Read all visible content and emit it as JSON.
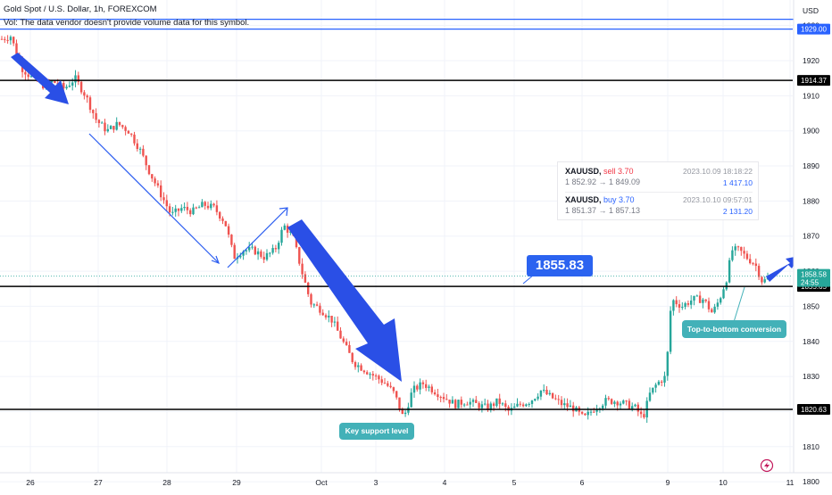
{
  "header": {
    "title": "Gold Spot / U.S. Dollar, 1h, FOREXCOM",
    "vol_note": "Vol: The data vendor doesn't provide volume data for this symbol.",
    "currency": "USD"
  },
  "trades": [
    {
      "symbol": "XAUUSD,",
      "side": "sell 3.70",
      "side_color": "#f23645",
      "datetime": "2023.10.09 18:18:22",
      "prices": "1 852.92 → 1 849.09",
      "volume": "1 417.10"
    },
    {
      "symbol": "XAUUSD,",
      "side": "buy 3.70",
      "side_color": "#2962ff",
      "datetime": "2023.10.10 09:57:01",
      "prices": "1 851.37 → 1 857.13",
      "volume": "2 131.20"
    }
  ],
  "annotations": {
    "big_price_label": "1855.83",
    "key_support": "Key support level",
    "conversion": "Top-to-bottom conversion"
  },
  "colors": {
    "up": "#26a69a",
    "down": "#ef5350",
    "level_line": "#000000",
    "blue_line": "#2962ff",
    "arrow_blue": "#2a4fe6",
    "callout": "#43b1b8",
    "price_tag": "#26a69a"
  },
  "chart_data": {
    "type": "candlestick",
    "ylim": [
      1798,
      1935
    ],
    "y_ticks": [
      1800,
      1810,
      1820,
      1830,
      1840,
      1850,
      1860,
      1870,
      1880,
      1890,
      1900,
      1910,
      1920,
      1930
    ],
    "x_ticks": [
      "26",
      "27",
      "28",
      "29",
      "Oct",
      "3",
      "4",
      "5",
      "6",
      "9",
      "10",
      "11"
    ],
    "horizontal_levels": [
      {
        "price": 1914.37,
        "label": "1914.37",
        "color": "#000000"
      },
      {
        "price": 1855.65,
        "label": "1855.65",
        "color": "#000000"
      },
      {
        "price": 1820.63,
        "label": "1820.63",
        "color": "#000000"
      }
    ],
    "blue_levels": [
      {
        "price": 1929.0,
        "label": "1929.00"
      }
    ],
    "last_price": {
      "value": 1858.58,
      "label": "1858.58",
      "countdown": "24:55"
    },
    "path": [
      [
        0,
        1926
      ],
      [
        12,
        1927
      ],
      [
        24,
        1918
      ],
      [
        36,
        1915
      ],
      [
        48,
        1913
      ],
      [
        60,
        1914
      ],
      [
        72,
        1912
      ],
      [
        84,
        1915
      ],
      [
        96,
        1910
      ],
      [
        108,
        1903
      ],
      [
        120,
        1900
      ],
      [
        132,
        1902
      ],
      [
        144,
        1900
      ],
      [
        156,
        1895
      ],
      [
        168,
        1888
      ],
      [
        180,
        1882
      ],
      [
        192,
        1876
      ],
      [
        204,
        1878
      ],
      [
        216,
        1877
      ],
      [
        228,
        1879
      ],
      [
        240,
        1878
      ],
      [
        252,
        1874
      ],
      [
        262,
        1864
      ],
      [
        272,
        1866
      ],
      [
        284,
        1866
      ],
      [
        296,
        1864
      ],
      [
        308,
        1866
      ],
      [
        318,
        1873
      ],
      [
        328,
        1870
      ],
      [
        338,
        1860
      ],
      [
        348,
        1851
      ],
      [
        360,
        1849
      ],
      [
        372,
        1846
      ],
      [
        384,
        1840
      ],
      [
        396,
        1834
      ],
      [
        408,
        1832
      ],
      [
        420,
        1830
      ],
      [
        432,
        1828
      ],
      [
        442,
        1825
      ],
      [
        452,
        1818
      ],
      [
        462,
        1826
      ],
      [
        474,
        1828
      ],
      [
        486,
        1826
      ],
      [
        498,
        1824
      ],
      [
        510,
        1822
      ],
      [
        522,
        1823
      ],
      [
        534,
        1822
      ],
      [
        546,
        1821
      ],
      [
        558,
        1823
      ],
      [
        570,
        1820
      ],
      [
        582,
        1822
      ],
      [
        594,
        1823
      ],
      [
        606,
        1826
      ],
      [
        618,
        1824
      ],
      [
        630,
        1822
      ],
      [
        642,
        1821
      ],
      [
        654,
        1818
      ],
      [
        666,
        1821
      ],
      [
        678,
        1823
      ],
      [
        690,
        1823
      ],
      [
        702,
        1822
      ],
      [
        712,
        1821
      ],
      [
        720,
        1818
      ],
      [
        728,
        1825
      ],
      [
        736,
        1828
      ],
      [
        746,
        1830
      ],
      [
        752,
        1852
      ],
      [
        764,
        1850
      ],
      [
        776,
        1852
      ],
      [
        788,
        1852
      ],
      [
        798,
        1848
      ],
      [
        806,
        1852
      ],
      [
        814,
        1858
      ],
      [
        820,
        1866
      ],
      [
        828,
        1866
      ],
      [
        836,
        1864
      ],
      [
        846,
        1862
      ],
      [
        854,
        1857
      ],
      [
        862,
        1858
      ]
    ]
  }
}
